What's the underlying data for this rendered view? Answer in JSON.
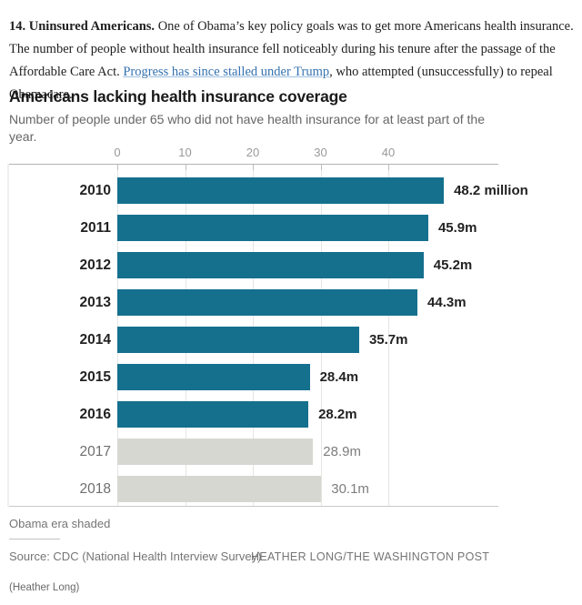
{
  "intro": {
    "bold_lead": "14. Uninsured Americans.",
    "text_before_link": " One of Obama’s key policy goals was to get more Americans health insurance. The number of people without health insurance fell noticeably during his tenure after the passage of the Affordable Care Act. ",
    "link_text": "Progress has since stalled under Trump",
    "text_after_link": ", who attempted (unsuccessfully) to repeal Obamacare."
  },
  "chart": {
    "title": "Americans lacking health insurance coverage",
    "subtitle": "Number of people under 65 who did not have health insurance for at least part of the year.",
    "note": "Obama era shaded",
    "source": "Source: CDC (National Health Interview Survey)",
    "credit": "HEATHER LONG/THE WASHINGTON POST",
    "caption": "(Heather Long)",
    "colors": {
      "obama_bar": "#15708e",
      "trump_bar": "#d7d7d2",
      "link_blue": "#3572b0"
    }
  },
  "chart_data": {
    "type": "bar",
    "orientation": "horizontal",
    "title": "Americans lacking health insurance coverage",
    "subtitle": "Number of people under 65 who did not have health insurance for at least part of the year.",
    "categories": [
      "2010",
      "2011",
      "2012",
      "2013",
      "2014",
      "2015",
      "2016",
      "2017",
      "2018"
    ],
    "values": [
      48.2,
      45.9,
      45.2,
      44.3,
      35.7,
      28.4,
      28.2,
      28.9,
      30.1
    ],
    "value_labels": [
      "48.2 million",
      "45.9m",
      "45.2m",
      "44.3m",
      "35.7m",
      "28.4m",
      "28.2m",
      "28.9m",
      "30.1m"
    ],
    "era": [
      "obama",
      "obama",
      "obama",
      "obama",
      "obama",
      "obama",
      "obama",
      "trump",
      "trump"
    ],
    "unit": "millions of people",
    "x_ticks": [
      0,
      10,
      20,
      30,
      40
    ],
    "xlim": [
      0,
      50
    ],
    "grid": true,
    "legend_note": "Obama era shaded"
  }
}
